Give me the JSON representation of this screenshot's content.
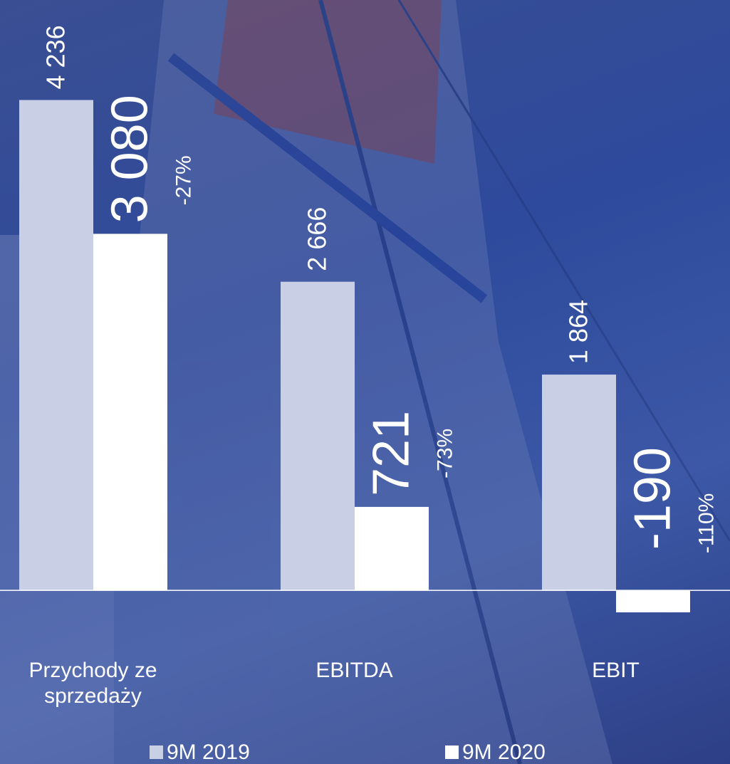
{
  "chart_data": {
    "type": "bar",
    "categories": [
      "Przychody ze sprzedaży",
      "EBITDA",
      "EBIT"
    ],
    "series": [
      {
        "name": "9M 2019",
        "color": "#c9d0e6",
        "values": [
          4236,
          2666,
          1864
        ],
        "value_labels": [
          "4 236",
          "2 666",
          "1 864"
        ]
      },
      {
        "name": "9M 2020",
        "color": "#ffffff",
        "values": [
          3080,
          721,
          -190
        ],
        "value_labels": [
          "3 080",
          "721",
          "-190"
        ]
      }
    ],
    "annotations": [
      "-27%",
      "-73%",
      "-110%"
    ],
    "ylim": [
      -1500,
      5100
    ]
  }
}
